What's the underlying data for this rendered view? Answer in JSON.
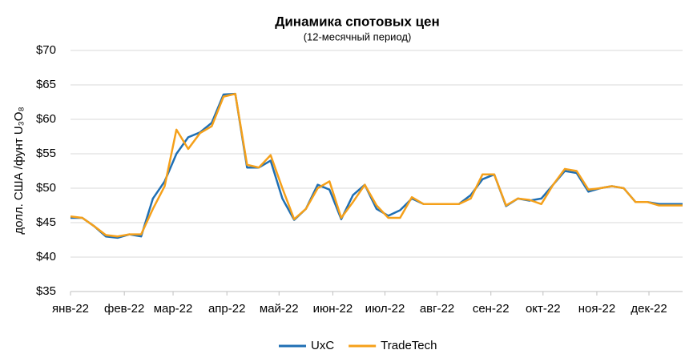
{
  "chart_data": {
    "type": "line",
    "title": "Динамика спотовых цен",
    "subtitle": "(12-месячный период)",
    "y_label": "долл. США /фунт U₃O₈",
    "x": [
      0,
      7,
      14,
      21,
      28,
      35,
      42,
      49,
      56,
      63,
      70,
      77,
      84,
      91,
      98,
      105,
      112,
      119,
      126,
      133,
      140,
      147,
      154,
      161,
      168,
      175,
      182,
      189,
      196,
      203,
      210,
      217,
      224,
      231,
      238,
      245,
      252,
      259,
      266,
      273,
      280,
      287,
      294,
      301,
      308,
      315,
      322,
      329,
      336,
      343,
      350,
      357,
      364
    ],
    "xlim": [
      0,
      364
    ],
    "xticks": [
      {
        "value": 0,
        "label": "янв-22"
      },
      {
        "value": 32,
        "label": "фев-22"
      },
      {
        "value": 61,
        "label": "мар-22"
      },
      {
        "value": 93,
        "label": "апр-22"
      },
      {
        "value": 124,
        "label": "май-22"
      },
      {
        "value": 156,
        "label": "июн-22"
      },
      {
        "value": 187,
        "label": "июл-22"
      },
      {
        "value": 218,
        "label": "авг-22"
      },
      {
        "value": 250,
        "label": "сен-22"
      },
      {
        "value": 281,
        "label": "окт-22"
      },
      {
        "value": 313,
        "label": "ноя-22"
      },
      {
        "value": 344,
        "label": "дек-22"
      }
    ],
    "ylim": [
      35,
      70
    ],
    "yticks": [
      {
        "value": 35,
        "label": "$35"
      },
      {
        "value": 40,
        "label": "$40"
      },
      {
        "value": 45,
        "label": "$45"
      },
      {
        "value": 50,
        "label": "$50"
      },
      {
        "value": 55,
        "label": "$55"
      },
      {
        "value": 60,
        "label": "$60"
      },
      {
        "value": 65,
        "label": "$65"
      },
      {
        "value": 70,
        "label": "$70"
      }
    ],
    "grid": true,
    "legend": "bottom",
    "series": [
      {
        "name": "UxC",
        "color": "#1f6fb4",
        "values": [
          45.7,
          45.7,
          44.5,
          43.0,
          42.8,
          43.3,
          43.0,
          48.5,
          51.0,
          55.0,
          57.4,
          58.1,
          59.5,
          63.6,
          63.7,
          53.0,
          53.0,
          54.0,
          48.5,
          45.4,
          47.0,
          50.5,
          49.8,
          45.5,
          49.0,
          50.5,
          47.0,
          46.0,
          46.8,
          48.5,
          47.7,
          47.7,
          47.7,
          47.7,
          49.0,
          51.3,
          52.0,
          47.4,
          48.5,
          48.2,
          48.5,
          50.5,
          52.5,
          52.2,
          49.5,
          50.0,
          50.3,
          50.0,
          48.0,
          48.0,
          47.7,
          47.7,
          47.7
        ]
      },
      {
        "name": "TradeTech",
        "color": "#f5a01a",
        "values": [
          45.9,
          45.7,
          44.5,
          43.2,
          43.0,
          43.3,
          43.3,
          47.0,
          50.3,
          58.5,
          55.7,
          58.0,
          59.0,
          63.3,
          63.7,
          53.4,
          53.0,
          54.8,
          50.0,
          45.5,
          47.0,
          50.0,
          51.0,
          45.7,
          48.0,
          50.5,
          47.5,
          45.7,
          45.7,
          48.7,
          47.7,
          47.7,
          47.7,
          47.7,
          48.5,
          52.0,
          52.0,
          47.5,
          48.5,
          48.3,
          47.7,
          50.5,
          52.8,
          52.5,
          49.8,
          50.0,
          50.3,
          50.0,
          48.0,
          48.0,
          47.5,
          47.5,
          47.5
        ]
      }
    ]
  }
}
